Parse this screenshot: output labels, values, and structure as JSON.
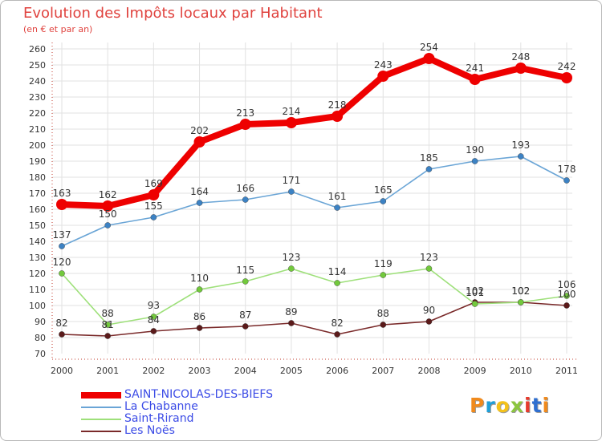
{
  "title": "Evolution des Impôts locaux par Habitant",
  "subtitle": "(en € et par an)",
  "logo_text": "Proxiti",
  "logo_colors": [
    "#f08a1c",
    "#1f9fd8",
    "#f4c21a",
    "#8cc63f",
    "#e63b2e",
    "#2f6fd0",
    "#f08a1c"
  ],
  "chart_data": {
    "type": "line",
    "title": "Evolution des Impôts locaux par Habitant",
    "subtitle": "(en € et par an)",
    "xlabel": "",
    "ylabel": "",
    "x": [
      "2000",
      "2001",
      "2002",
      "2003",
      "2004",
      "2005",
      "2006",
      "2007",
      "2008",
      "2009",
      "2010",
      "2011"
    ],
    "ylim": [
      70,
      260
    ],
    "yticks": [
      70,
      80,
      90,
      100,
      110,
      120,
      130,
      140,
      150,
      160,
      170,
      180,
      190,
      200,
      210,
      220,
      230,
      240,
      250,
      260
    ],
    "grid": true,
    "legend_position": "bottom-left",
    "series": [
      {
        "name": "SAINT-NICOLAS-DES-BIEFS",
        "color": "#ee0000",
        "values": [
          163,
          162,
          169,
          202,
          213,
          214,
          218,
          243,
          254,
          241,
          248,
          242
        ]
      },
      {
        "name": "La Chabanne",
        "color": "#6aa5d6",
        "marker_color": "#3c82c4",
        "values": [
          137,
          150,
          155,
          164,
          166,
          171,
          161,
          165,
          185,
          190,
          193,
          178
        ]
      },
      {
        "name": "Saint-Rirand",
        "color": "#9ee07a",
        "marker_color": "#72c93c",
        "values": [
          120,
          88,
          93,
          110,
          115,
          123,
          114,
          119,
          123,
          101,
          102,
          106
        ]
      },
      {
        "name": "Les Noës",
        "color": "#7a2a2a",
        "marker_color": "#5b1a1a",
        "values": [
          82,
          81,
          84,
          86,
          87,
          89,
          82,
          88,
          90,
          102,
          102,
          100
        ]
      }
    ]
  }
}
